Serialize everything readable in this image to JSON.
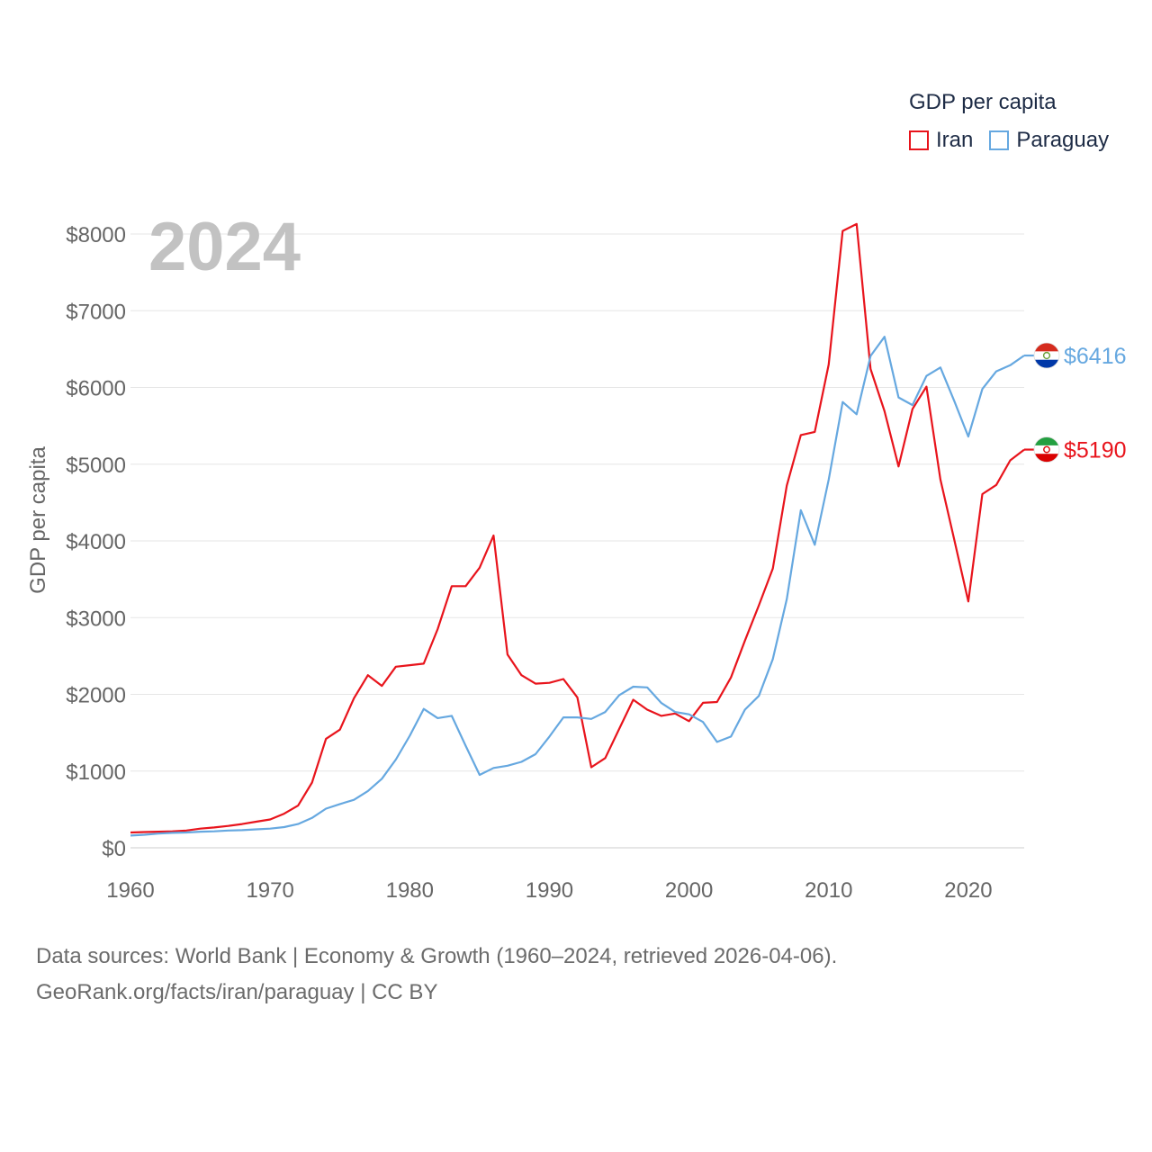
{
  "chart_data": {
    "type": "line",
    "year_label": "2024",
    "ylabel": "GDP per capita",
    "legend_title": "GDP per capita",
    "ylim": [
      0,
      8000
    ],
    "xlim": [
      1960,
      2024
    ],
    "y_ticks": [
      0,
      1000,
      2000,
      3000,
      4000,
      5000,
      6000,
      7000,
      8000
    ],
    "y_tick_labels": [
      "$0",
      "$1000",
      "$2000",
      "$3000",
      "$4000",
      "$5000",
      "$6000",
      "$7000",
      "$8000"
    ],
    "x_ticks": [
      1960,
      1970,
      1980,
      1990,
      2000,
      2010,
      2020
    ],
    "x_tick_labels": [
      "1960",
      "1970",
      "1980",
      "1990",
      "2000",
      "2010",
      "2020"
    ],
    "x": [
      1960,
      1961,
      1962,
      1963,
      1964,
      1965,
      1966,
      1967,
      1968,
      1969,
      1970,
      1971,
      1972,
      1973,
      1974,
      1975,
      1976,
      1977,
      1978,
      1979,
      1980,
      1981,
      1982,
      1983,
      1984,
      1985,
      1986,
      1987,
      1988,
      1989,
      1990,
      1991,
      1992,
      1993,
      1994,
      1995,
      1996,
      1997,
      1998,
      1999,
      2000,
      2001,
      2002,
      2003,
      2004,
      2005,
      2006,
      2007,
      2008,
      2009,
      2010,
      2011,
      2012,
      2013,
      2014,
      2015,
      2016,
      2017,
      2018,
      2019,
      2020,
      2021,
      2022,
      2023,
      2024
    ],
    "series": [
      {
        "name": "Iran",
        "color": "#e8141c",
        "end_label": "$5190",
        "values": [
          200,
          205,
          210,
          215,
          225,
          250,
          265,
          285,
          310,
          340,
          370,
          445,
          550,
          850,
          1420,
          1540,
          1950,
          2250,
          2110,
          2360,
          2380,
          2400,
          2850,
          3410,
          3410,
          3650,
          4070,
          2520,
          2250,
          2140,
          2150,
          2200,
          1960,
          1050,
          1170,
          1550,
          1930,
          1800,
          1720,
          1750,
          1650,
          1890,
          1900,
          2220,
          2700,
          3160,
          3640,
          4720,
          5380,
          5420,
          6300,
          8040,
          8130,
          6240,
          5690,
          4970,
          5720,
          6010,
          4800,
          4010,
          3210,
          4610,
          4730,
          5050,
          5190
        ]
      },
      {
        "name": "Paraguay",
        "color": "#66a8e0",
        "end_label": "$6416",
        "values": [
          160,
          170,
          185,
          195,
          200,
          210,
          215,
          225,
          230,
          240,
          250,
          270,
          310,
          390,
          510,
          570,
          625,
          740,
          900,
          1150,
          1460,
          1810,
          1690,
          1720,
          1330,
          950,
          1040,
          1070,
          1120,
          1220,
          1450,
          1700,
          1700,
          1680,
          1770,
          1990,
          2100,
          2090,
          1890,
          1770,
          1740,
          1640,
          1380,
          1450,
          1800,
          1980,
          2460,
          3240,
          4400,
          3950,
          4800,
          5810,
          5650,
          6410,
          6660,
          5870,
          5770,
          6150,
          6260,
          5820,
          5360,
          5980,
          6210,
          6290,
          6416
        ]
      }
    ]
  },
  "source": {
    "line1": "Data sources: World Bank | Economy & Growth (1960–2024, retrieved 2026-04-06).",
    "line2": "GeoRank.org/facts/iran/paraguay | CC BY"
  }
}
